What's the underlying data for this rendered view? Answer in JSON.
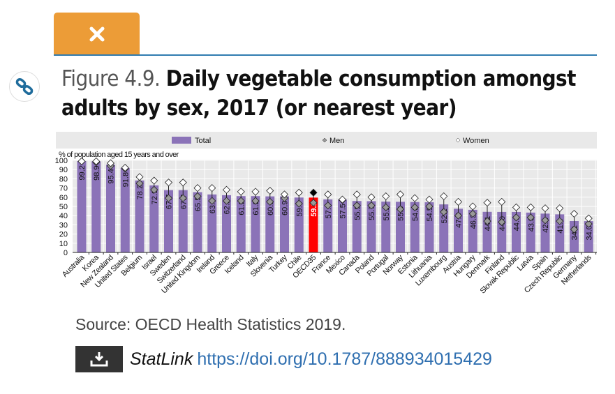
{
  "header": {
    "close_icon": "x-icon",
    "link_icon": "chain-link-icon"
  },
  "figure": {
    "number": "Figure 4.9.",
    "title": "Daily vegetable consumption amongst adults by sex, 2017 (or nearest year)"
  },
  "source": "Source: OECD Health Statistics 2019.",
  "statlink": {
    "label": "StatLink",
    "url": "https://doi.org/10.1787/888934015429",
    "icon": "download-icon"
  },
  "colors": {
    "accent": "#ec9c37",
    "bar": "#8b73b8",
    "highlight": "#ff0000",
    "link": "#2f6fb0"
  },
  "chart_data": {
    "type": "bar",
    "ylabel": "% of population aged 15 years and over",
    "ylim": [
      0,
      100
    ],
    "yticks": [
      0,
      10,
      20,
      30,
      40,
      50,
      60,
      70,
      80,
      90,
      100
    ],
    "grid": true,
    "legend_position": "top",
    "legend": [
      "Total",
      "Men",
      "Women"
    ],
    "highlight": "OECD35",
    "categories": [
      "Australia",
      "Korea",
      "New Zealand",
      "United States",
      "Belgium",
      "Israel",
      "Sweden",
      "Switzerland",
      "United Kingdom",
      "Ireland",
      "Greece",
      "Iceland",
      "Italy",
      "Slovenia",
      "Turkey",
      "Chile",
      "OECD35",
      "France",
      "Mexico",
      "Canada",
      "Poland",
      "Portugal",
      "Norway",
      "Estonia",
      "Lithuania",
      "Luxembourg",
      "Austria",
      "Hungary",
      "Denmark",
      "Finland",
      "Slovak Republic",
      "Latvia",
      "Spain",
      "Czech Republic",
      "Germany",
      "Netherlands"
    ],
    "series": [
      {
        "name": "Total",
        "values": [
          99.2,
          98.9,
          95.4,
          91.8,
          78.2,
          72.9,
          67.7,
          67.7,
          65.5,
          63.0,
          62.2,
          61.2,
          61.2,
          60.9,
          60.9,
          59.7,
          59.6,
          57.6,
          57.5,
          55.9,
          55.7,
          55.2,
          55.0,
          54.8,
          54.5,
          52.2,
          47.5,
          46.3,
          44.1,
          44.0,
          44.0,
          43.3,
          42.2,
          41.4,
          34.1,
          34.0
        ]
      },
      {
        "name": "Men",
        "values": [
          99,
          98,
          94,
          91,
          75,
          68,
          59,
          59,
          61,
          56,
          56,
          56,
          56,
          55,
          59,
          53,
          54,
          51,
          57,
          51,
          51,
          49,
          47,
          49,
          50,
          44,
          40,
          42,
          34,
          33,
          38,
          38,
          35,
          34,
          25,
          31
        ]
      },
      {
        "name": "Women",
        "values": [
          99,
          99,
          97,
          92,
          82,
          78,
          76,
          76,
          70,
          70,
          68,
          66,
          66,
          67,
          63,
          65,
          65,
          63,
          57.5,
          63,
          60,
          61,
          63,
          59,
          57.5,
          61,
          55,
          50,
          54,
          55,
          49,
          49,
          48,
          48,
          42,
          37
        ]
      }
    ]
  }
}
